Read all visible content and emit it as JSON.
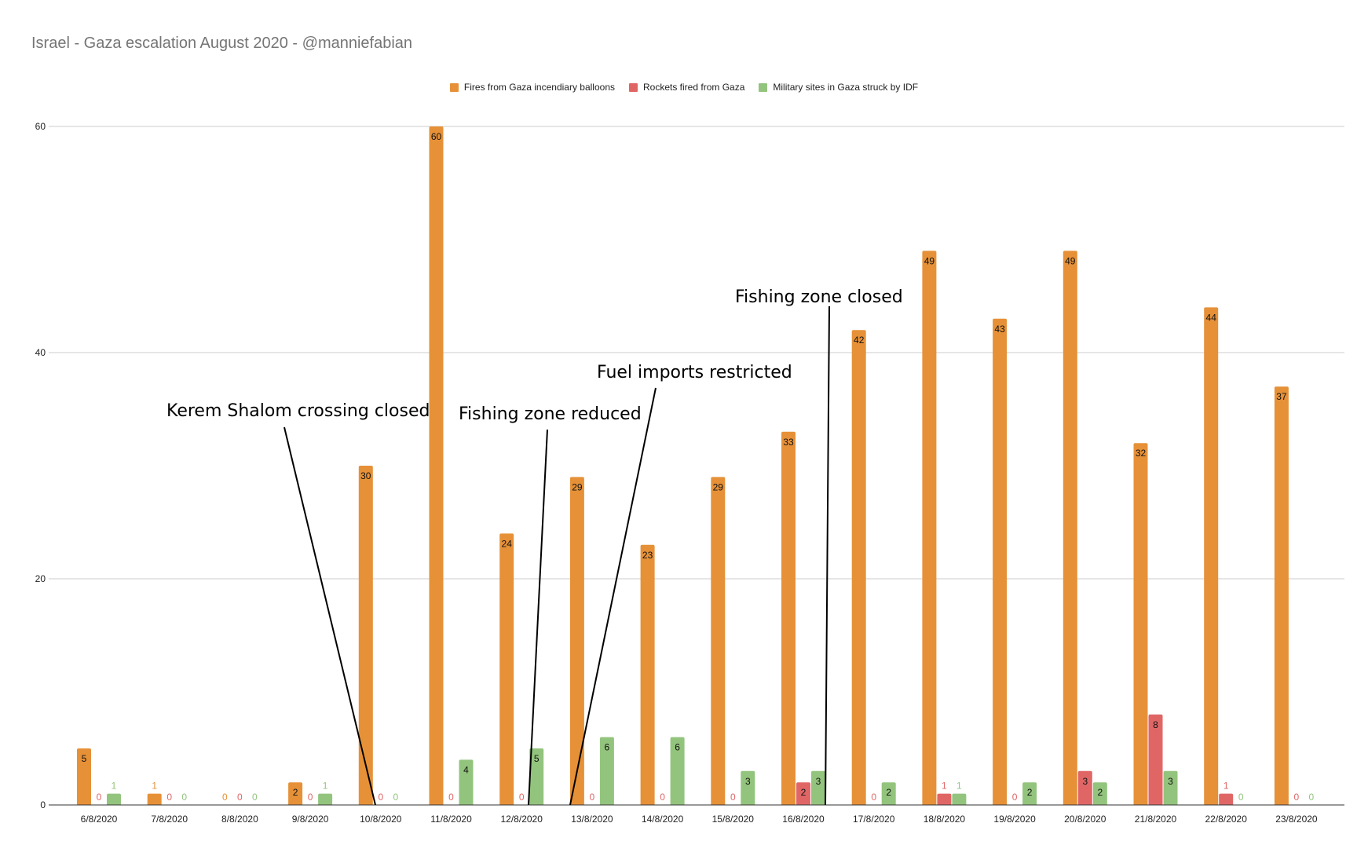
{
  "chart_data": {
    "type": "bar",
    "title": "Israel - Gaza escalation August 2020 - @manniefabian",
    "xlabel": "",
    "ylabel": "",
    "ylim": [
      0,
      60
    ],
    "yticks": [
      0,
      20,
      40,
      60
    ],
    "grid": true,
    "legend_position": "top",
    "categories": [
      "6/8/2020",
      "7/8/2020",
      "8/8/2020",
      "9/8/2020",
      "10/8/2020",
      "11/8/2020",
      "12/8/2020",
      "13/8/2020",
      "14/8/2020",
      "15/8/2020",
      "16/8/2020",
      "17/8/2020",
      "18/8/2020",
      "19/8/2020",
      "20/8/2020",
      "21/8/2020",
      "22/8/2020",
      "23/8/2020"
    ],
    "series": [
      {
        "name": "Fires from Gaza incendiary balloons",
        "color": "#e69138",
        "values": [
          5,
          1,
          0,
          2,
          30,
          60,
          24,
          29,
          23,
          29,
          33,
          42,
          49,
          43,
          49,
          32,
          44,
          37
        ]
      },
      {
        "name": "Rockets fired from Gaza",
        "color": "#e06666",
        "values": [
          0,
          0,
          0,
          0,
          0,
          0,
          0,
          0,
          0,
          0,
          2,
          0,
          1,
          0,
          3,
          8,
          1,
          0
        ]
      },
      {
        "name": "Military sites in Gaza struck by IDF",
        "color": "#93c47d",
        "values": [
          1,
          0,
          0,
          1,
          0,
          4,
          5,
          6,
          6,
          3,
          3,
          2,
          1,
          2,
          2,
          3,
          0,
          0
        ]
      }
    ],
    "annotations": [
      {
        "text": "Kerem Shalom crossing closed",
        "category": "10/8/2020"
      },
      {
        "text": "Fishing zone reduced",
        "category": "12/8/2020"
      },
      {
        "text": "Fuel imports restricted",
        "category": "13/8/2020"
      },
      {
        "text": "Fishing zone closed",
        "category": "16/8/2020"
      }
    ]
  }
}
